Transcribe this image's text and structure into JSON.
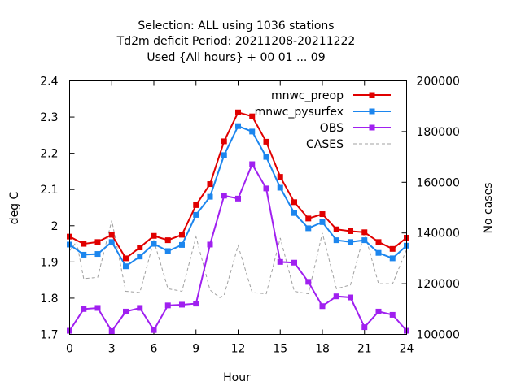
{
  "chart_data": {
    "type": "line",
    "title_lines": [
      "Selection: ALL using  1036 stations",
      "Td2m deficit   Period: 20211208-20211222",
      "Used {All hours} + 00 01 ... 09"
    ],
    "xlabel": "Hour",
    "ylabel": "deg C",
    "y2label": "No cases",
    "xlim": [
      0,
      24
    ],
    "ylim": [
      1.7,
      2.4
    ],
    "y2lim": [
      100000,
      200000
    ],
    "x_ticks": [
      "0",
      "3",
      "6",
      "9",
      "12",
      "15",
      "18",
      "21",
      "24"
    ],
    "y_ticks": [
      "1.7",
      "1.8",
      "1.9",
      "2",
      "2.1",
      "2.2",
      "2.3",
      "2.4"
    ],
    "y2_ticks": [
      "100000",
      "120000",
      "140000",
      "160000",
      "180000",
      "200000"
    ],
    "x": [
      0,
      1,
      2,
      3,
      4,
      5,
      6,
      7,
      8,
      9,
      10,
      11,
      12,
      13,
      14,
      15,
      16,
      17,
      18,
      19,
      20,
      21,
      22,
      23,
      24
    ],
    "legend_position": "top-right",
    "grid": false,
    "series": [
      {
        "name": "mnwc_preop",
        "color": "#e00000",
        "axis": "left",
        "style": "line-points",
        "values": [
          1.97,
          1.95,
          1.955,
          1.975,
          1.91,
          1.94,
          1.972,
          1.96,
          1.975,
          2.057,
          2.115,
          2.233,
          2.313,
          2.302,
          2.232,
          2.135,
          2.065,
          2.02,
          2.032,
          1.99,
          1.985,
          1.982,
          1.955,
          1.936,
          1.967
        ]
      },
      {
        "name": "mnwc_pysurfex",
        "color": "#1c86ee",
        "axis": "left",
        "style": "line-points",
        "values": [
          1.948,
          1.92,
          1.922,
          1.955,
          1.888,
          1.915,
          1.95,
          1.93,
          1.947,
          2.03,
          2.08,
          2.195,
          2.275,
          2.26,
          2.19,
          2.105,
          2.035,
          1.993,
          2.01,
          1.96,
          1.955,
          1.96,
          1.925,
          1.91,
          1.945
        ]
      },
      {
        "name": "OBS",
        "color": "#a020f0",
        "axis": "left",
        "style": "line-points",
        "values": [
          1.71,
          1.77,
          1.773,
          1.709,
          1.763,
          1.773,
          1.712,
          1.78,
          1.782,
          1.785,
          1.948,
          2.083,
          2.075,
          2.17,
          2.103,
          1.9,
          1.898,
          1.845,
          1.778,
          1.805,
          1.802,
          1.72,
          1.763,
          1.754,
          1.71
        ]
      },
      {
        "name": "CASES",
        "color": "#a0a0a0",
        "axis": "right",
        "style": "dashed",
        "x": [
          0,
          0.5,
          1,
          2,
          3,
          4,
          5,
          6,
          7,
          8,
          9,
          10,
          10.7,
          11,
          12,
          13,
          14,
          15,
          16,
          17,
          18,
          19,
          20,
          21,
          22,
          23,
          24
        ],
        "values": [
          133000,
          136500,
          122000,
          122500,
          145000,
          117000,
          116500,
          137000,
          118000,
          117000,
          138500,
          117500,
          114500,
          115500,
          135000,
          116500,
          116000,
          138000,
          117000,
          116000,
          140000,
          118000,
          119500,
          140000,
          120000,
          120000,
          133500
        ]
      }
    ]
  }
}
